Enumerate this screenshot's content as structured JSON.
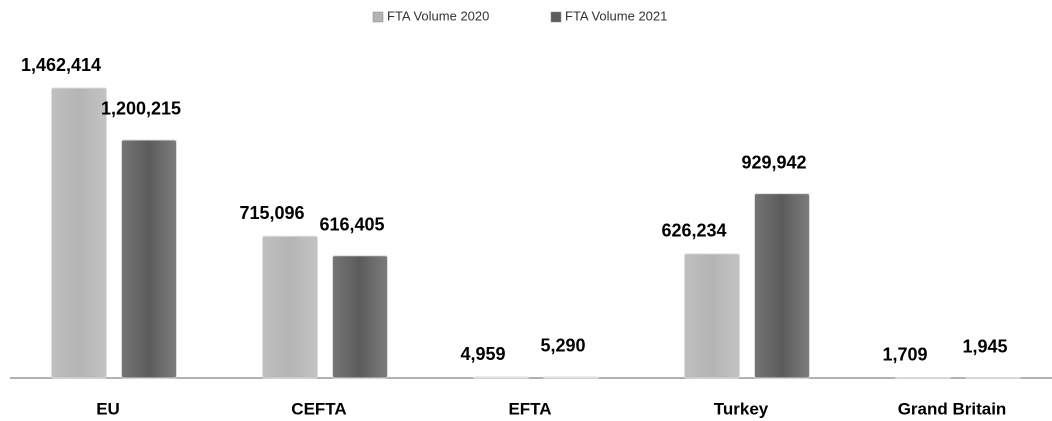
{
  "chart_data": {
    "type": "bar",
    "categories": [
      "EU",
      "CEFTA",
      "EFTA",
      "Turkey",
      "Grand Britain"
    ],
    "series": [
      {
        "name": "FTA Volume 2020",
        "color": "#b4b4b4",
        "values": [
          1462414,
          715096,
          4959,
          626234,
          1709
        ],
        "value_labels": [
          "1,462,414",
          "715,096",
          "4,959",
          "626,234",
          "1,709"
        ]
      },
      {
        "name": "FTA Volume 2021",
        "color": "#5c5c5c",
        "values": [
          1200215,
          616405,
          5290,
          929942,
          1945
        ],
        "value_labels": [
          "1,200,215",
          "616,405",
          "5,290",
          "929,942",
          "1,945"
        ]
      }
    ],
    "legend": "top"
  }
}
